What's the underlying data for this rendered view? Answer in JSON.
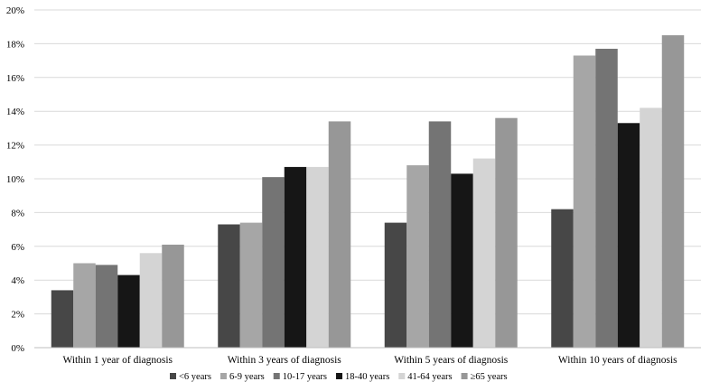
{
  "chart_data": {
    "type": "bar",
    "title": "",
    "xlabel": "",
    "ylabel": "",
    "ylim": [
      0,
      20
    ],
    "y_ticks": [
      0,
      2,
      4,
      6,
      8,
      10,
      12,
      14,
      16,
      18,
      20
    ],
    "y_tick_labels": [
      "0%",
      "2%",
      "4%",
      "6%",
      "8%",
      "10%",
      "12%",
      "14%",
      "16%",
      "18%",
      "20%"
    ],
    "grid": true,
    "legend_position": "bottom",
    "categories": [
      "Within 1  year of diagnosis",
      "Within 3 years of diagnosis",
      "Within 5 years of diagnosis",
      "Within 10 years of diagnosis"
    ],
    "series": [
      {
        "name": "<6 years",
        "color": "#474747",
        "values": [
          3.4,
          7.3,
          7.4,
          8.2
        ]
      },
      {
        "name": "6-9 years",
        "color": "#a6a6a6",
        "values": [
          5.0,
          7.4,
          10.8,
          17.3
        ]
      },
      {
        "name": "10-17 years",
        "color": "#747474",
        "values": [
          4.9,
          10.1,
          13.4,
          17.7
        ]
      },
      {
        "name": "18-40 years",
        "color": "#161616",
        "values": [
          4.3,
          10.7,
          10.3,
          13.3
        ]
      },
      {
        "name": "41-64 years",
        "color": "#d4d4d4",
        "values": [
          5.6,
          10.7,
          11.2,
          14.2
        ]
      },
      {
        "name": "≥65 years",
        "color": "#979797",
        "values": [
          6.1,
          13.4,
          13.6,
          18.5
        ]
      }
    ]
  }
}
